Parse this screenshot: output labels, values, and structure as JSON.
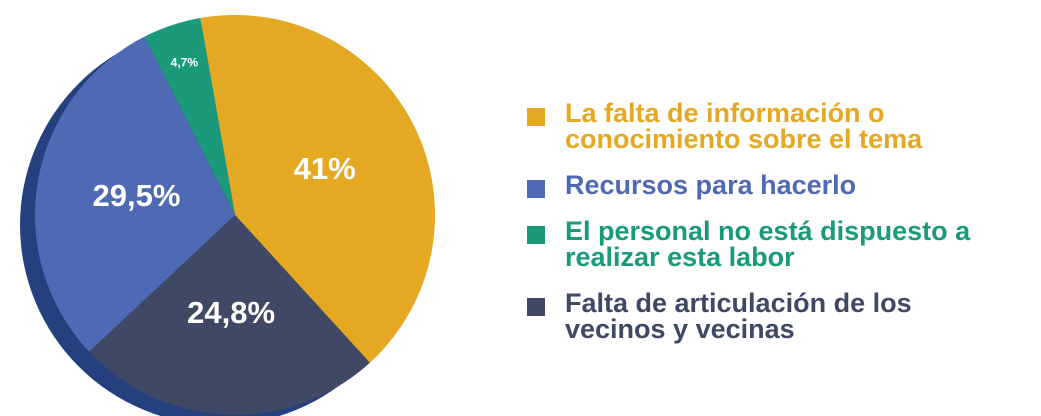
{
  "chart_data": {
    "type": "pie",
    "categories": [
      "La falta de información o conocimiento sobre el tema",
      "Falta de articulación de los vecinos y vecinas",
      "Recursos para hacerlo",
      "El personal no está dispuesto a realizar esta labor"
    ],
    "values": [
      41,
      24.8,
      29.5,
      4.7
    ],
    "value_labels": [
      "41%",
      "24,8%",
      "29,5%",
      "4,7%"
    ],
    "colors": [
      "#e5a823",
      "#3f4865",
      "#4f6ab4",
      "#1a9a7b"
    ]
  }
}
